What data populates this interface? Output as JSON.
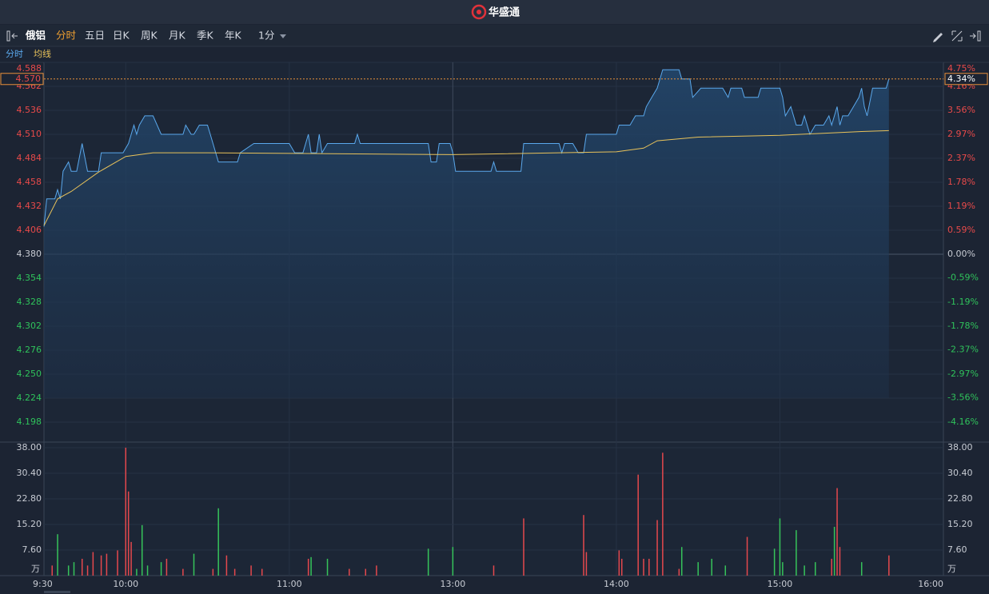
{
  "app": {
    "name": "华盛通"
  },
  "toolbar": {
    "symbol": "俄铝",
    "tabs": [
      "分时",
      "五日",
      "日K",
      "周K",
      "月K",
      "季K",
      "年K"
    ],
    "interval": "1分"
  },
  "chart_data": {
    "type": "line",
    "series": [
      {
        "name": "分时",
        "color": "#5aa8ec",
        "x": [
          0,
          1,
          4,
          5,
          6,
          7,
          9,
          10,
          12,
          14,
          16,
          20,
          21,
          29,
          31,
          33,
          34,
          35,
          37,
          40,
          43,
          51,
          52,
          54,
          55,
          57,
          60,
          61,
          63,
          64,
          71,
          72,
          77,
          90,
          92,
          95,
          97,
          98,
          100,
          101,
          102,
          104,
          114,
          115,
          116,
          141,
          142,
          144,
          145,
          149,
          150,
          151,
          164,
          165,
          166,
          175,
          176,
          189,
          190,
          191,
          194,
          196,
          198,
          199,
          210,
          211,
          215,
          217,
          220,
          221,
          223,
          225,
          227,
          233,
          234,
          237,
          238,
          241,
          249,
          251,
          252,
          256,
          257,
          262,
          263,
          270,
          271,
          272,
          274,
          276,
          278,
          279,
          281,
          283,
          286,
          288,
          289,
          291,
          292,
          293,
          295,
          297,
          299,
          300,
          301,
          302,
          304,
          309,
          310
        ],
        "values": [
          4.41,
          4.44,
          4.44,
          4.45,
          4.44,
          4.47,
          4.48,
          4.47,
          4.47,
          4.5,
          4.47,
          4.47,
          4.49,
          4.49,
          4.5,
          4.52,
          4.51,
          4.52,
          4.53,
          4.53,
          4.51,
          4.51,
          4.52,
          4.51,
          4.51,
          4.52,
          4.52,
          4.51,
          4.49,
          4.48,
          4.48,
          4.49,
          4.5,
          4.5,
          4.49,
          4.49,
          4.51,
          4.49,
          4.49,
          4.51,
          4.49,
          4.5,
          4.5,
          4.51,
          4.5,
          4.5,
          4.48,
          4.48,
          4.5,
          4.5,
          4.49,
          4.47,
          4.47,
          4.48,
          4.47,
          4.47,
          4.5,
          4.5,
          4.49,
          4.5,
          4.5,
          4.49,
          4.49,
          4.51,
          4.51,
          4.52,
          4.52,
          4.53,
          4.53,
          4.54,
          4.55,
          4.56,
          4.58,
          4.58,
          4.57,
          4.57,
          4.55,
          4.56,
          4.56,
          4.55,
          4.56,
          4.56,
          4.55,
          4.55,
          4.56,
          4.56,
          4.55,
          4.53,
          4.54,
          4.52,
          4.52,
          4.53,
          4.51,
          4.52,
          4.52,
          4.53,
          4.52,
          4.54,
          4.52,
          4.53,
          4.53,
          4.54,
          4.55,
          4.56,
          4.54,
          4.53,
          4.56,
          4.56,
          4.57
        ]
      },
      {
        "name": "均线",
        "color": "#e8c25a",
        "x": [
          0,
          5,
          10,
          20,
          30,
          40,
          60,
          150,
          210,
          220,
          225,
          240,
          270,
          300,
          310
        ],
        "values": [
          4.411,
          4.44,
          4.448,
          4.469,
          4.486,
          4.49,
          4.49,
          4.488,
          4.491,
          4.495,
          4.503,
          4.507,
          4.509,
          4.513,
          4.514
        ]
      }
    ],
    "xlim": [
      0,
      330
    ],
    "xticks": [
      {
        "value": 0,
        "label": "9:30"
      },
      {
        "value": 30,
        "label": "10:00"
      },
      {
        "value": 90,
        "label": "11:00"
      },
      {
        "value": 150,
        "label": "13:00"
      },
      {
        "value": 210,
        "label": "14:00"
      },
      {
        "value": 270,
        "label": "15:00"
      },
      {
        "value": 330,
        "label": "16:00"
      }
    ],
    "ylim": [
      4.198,
      4.588
    ],
    "yticks": [
      4.588,
      4.562,
      4.536,
      {
        "value": 4.51,
        "label": "4.510"
      },
      4.484,
      4.458,
      4.432,
      4.406,
      {
        "value": 4.38,
        "label": "4.380"
      },
      4.354,
      4.328,
      4.302,
      4.276,
      {
        "value": 4.25,
        "label": "4.250"
      },
      4.224,
      4.198
    ],
    "y2lim": [
      -4.16,
      4.75
    ],
    "y2ticks": [
      {
        "value": 4.75,
        "label": "4.75%"
      },
      {
        "value": 4.16,
        "label": "4.16%"
      },
      {
        "value": 3.56,
        "label": "3.56%"
      },
      {
        "value": 2.97,
        "label": "2.97%"
      },
      {
        "value": 2.37,
        "label": "2.37%"
      },
      {
        "value": 1.78,
        "label": "1.78%"
      },
      {
        "value": 1.19,
        "label": "1.19%"
      },
      {
        "value": 0.59,
        "label": "0.59%"
      },
      {
        "value": 0,
        "label": "0.00%"
      },
      {
        "value": -0.59,
        "label": "-0.59%"
      },
      {
        "value": -1.19,
        "label": "-1.19%"
      },
      {
        "value": -1.78,
        "label": "-1.78%"
      },
      {
        "value": -2.37,
        "label": "-2.37%"
      },
      {
        "value": -2.97,
        "label": "-2.97%"
      },
      {
        "value": -3.56,
        "label": "-3.56%"
      },
      {
        "value": -4.16,
        "label": "-4.16%"
      }
    ],
    "grid": true,
    "last_price": {
      "value": 4.57,
      "label": "4.570"
    },
    "last_change": {
      "value": 4.34,
      "label": "4.34%"
    },
    "volume": {
      "type": "bar",
      "x": [
        3,
        5,
        9,
        11,
        14,
        16,
        18,
        21,
        23,
        27,
        30,
        31,
        32,
        34,
        36,
        38,
        43,
        45,
        51,
        55,
        62,
        64,
        67,
        70,
        76,
        80,
        97,
        98,
        104,
        112,
        118,
        122,
        141,
        150,
        165,
        176,
        198,
        199,
        211,
        212,
        218,
        220,
        222,
        225,
        227,
        233,
        234,
        240,
        245,
        250,
        258,
        268,
        270,
        271,
        276,
        279,
        283,
        289,
        290,
        291,
        292,
        300,
        310
      ],
      "values": [
        3,
        12.3,
        3,
        4,
        5,
        3,
        7,
        6,
        6.5,
        7.5,
        38,
        25,
        10,
        2,
        15,
        3,
        4,
        5,
        2,
        6.5,
        2,
        20,
        6,
        2,
        3,
        2,
        5,
        5.5,
        5,
        2,
        2,
        3,
        8,
        8.5,
        3,
        17,
        18,
        7,
        7.5,
        5,
        30,
        5,
        5,
        16.5,
        36.5,
        2,
        8.5,
        4,
        5,
        3,
        11.5,
        8,
        17,
        4,
        13.5,
        3,
        4,
        5,
        14.5,
        26,
        8.5,
        4,
        6
      ],
      "colors": [
        "#e5484d",
        "#36c35a",
        "#36c35a",
        "#36c35a",
        "#e5484d",
        "#e5484d",
        "#e5484d",
        "#e5484d",
        "#e5484d",
        "#e5484d",
        "#e5484d",
        "#e5484d",
        "#e5484d",
        "#36c35a",
        "#36c35a",
        "#36c35a",
        "#36c35a",
        "#e5484d",
        "#e5484d",
        "#36c35a",
        "#e5484d",
        "#36c35a",
        "#e5484d",
        "#e5484d",
        "#e5484d",
        "#e5484d",
        "#e5484d",
        "#36c35a",
        "#36c35a",
        "#e5484d",
        "#e5484d",
        "#e5484d",
        "#36c35a",
        "#36c35a",
        "#e5484d",
        "#e5484d",
        "#e5484d",
        "#e5484d",
        "#e5484d",
        "#e5484d",
        "#e5484d",
        "#e5484d",
        "#e5484d",
        "#e5484d",
        "#e5484d",
        "#e5484d",
        "#36c35a",
        "#36c35a",
        "#36c35a",
        "#36c35a",
        "#e5484d",
        "#36c35a",
        "#36c35a",
        "#36c35a",
        "#36c35a",
        "#36c35a",
        "#36c35a",
        "#e5484d",
        "#36c35a",
        "#e5484d",
        "#e5484d",
        "#36c35a",
        "#e5484d"
      ],
      "ylim": [
        0,
        38
      ],
      "yticks": [
        {
          "value": 38,
          "label": "38.00"
        },
        {
          "value": 30.4,
          "label": "30.40"
        },
        {
          "value": 22.8,
          "label": "22.80"
        },
        {
          "value": 15.2,
          "label": "15.20"
        },
        {
          "value": 7.6,
          "label": "7.60"
        }
      ],
      "unit": "万"
    }
  }
}
